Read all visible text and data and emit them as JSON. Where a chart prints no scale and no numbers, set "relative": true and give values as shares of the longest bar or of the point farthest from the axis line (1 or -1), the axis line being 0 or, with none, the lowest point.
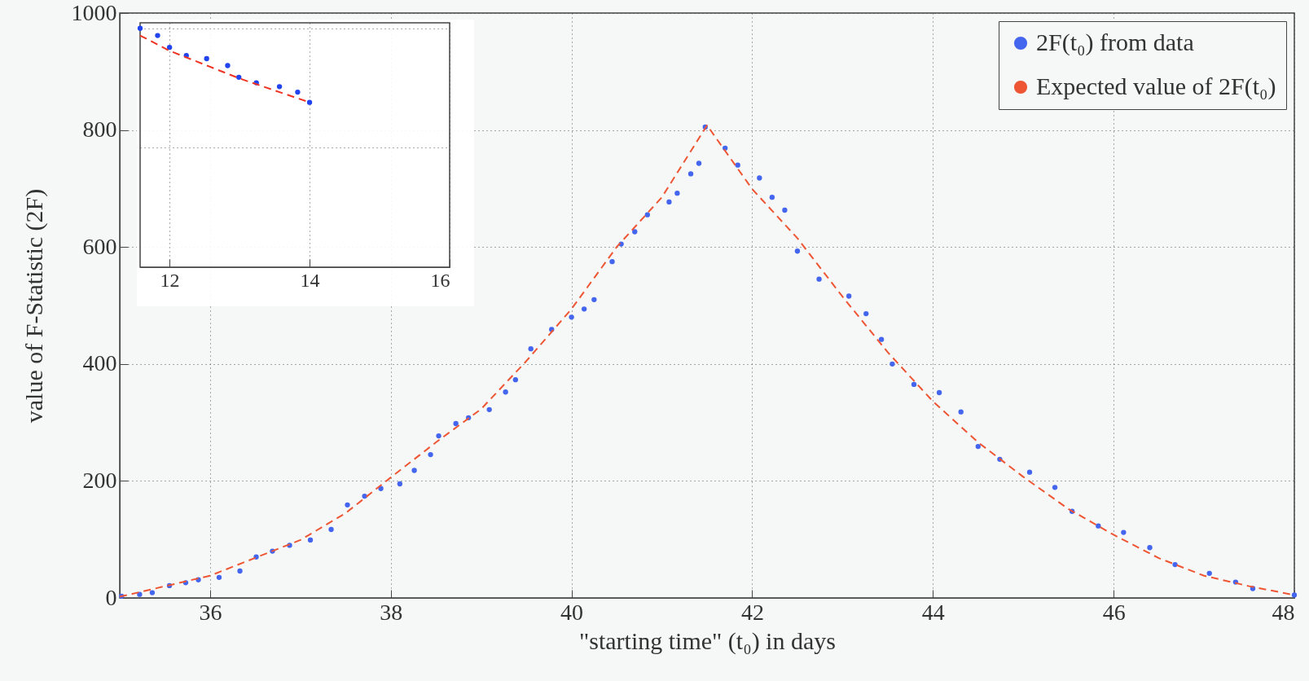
{
  "chart_data": [
    {
      "type": "scatter",
      "xlabel": "\"starting time\" (t₀) in days",
      "ylabel": "value of F-Statistic (2F)",
      "xlim": [
        35,
        48
      ],
      "xticks": [
        36,
        38,
        40,
        42,
        44,
        46,
        48
      ],
      "ylim": [
        0,
        1000
      ],
      "yticks": [
        0,
        200,
        400,
        600,
        800,
        1000
      ],
      "grid": true,
      "legend": "top right",
      "series": [
        {
          "name": "2F(t₀) from data",
          "type": "scatter",
          "marker": "circle",
          "color": "#4466ee",
          "x": [
            35.02,
            35.22,
            35.36,
            35.55,
            35.73,
            35.87,
            36.1,
            36.33,
            36.51,
            36.69,
            36.88,
            37.11,
            37.34,
            37.52,
            37.71,
            37.89,
            38.1,
            38.26,
            38.44,
            38.53,
            38.72,
            38.86,
            39.09,
            39.27,
            39.38,
            39.55,
            39.78,
            40.0,
            40.14,
            40.25,
            40.45,
            40.55,
            40.7,
            40.84,
            41.08,
            41.17,
            41.32,
            41.41,
            41.48,
            41.7,
            41.84,
            42.08,
            42.22,
            42.36,
            42.5,
            42.74,
            43.07,
            43.26,
            43.43,
            43.55,
            43.79,
            44.07,
            44.31,
            44.5,
            44.74,
            45.07,
            45.35,
            45.54,
            45.83,
            46.11,
            46.4,
            46.68,
            47.06,
            47.35,
            47.54,
            48.0
          ],
          "values": [
            3,
            6,
            9,
            21,
            26,
            31,
            35,
            46,
            70,
            80,
            90,
            99,
            117,
            159,
            174,
            187,
            195,
            218,
            245,
            277,
            298,
            308,
            322,
            352,
            373,
            426,
            459,
            480,
            494,
            510,
            575,
            605,
            626,
            655,
            677,
            692,
            725,
            743,
            805,
            769,
            740,
            718,
            685,
            663,
            593,
            545,
            516,
            486,
            442,
            400,
            365,
            351,
            318,
            259,
            237,
            215,
            189,
            148,
            123,
            112,
            86,
            57,
            42,
            27,
            16,
            5
          ]
        },
        {
          "name": "Expected value of 2F(t₀)",
          "type": "line",
          "line_style": "dashed",
          "color": "#ee5533",
          "x": [
            35,
            36,
            37,
            37.5,
            38,
            38.5,
            39,
            39.5,
            40,
            40.5,
            41,
            41.5,
            42,
            42.5,
            43,
            43.5,
            44,
            44.5,
            45,
            45.5,
            46,
            46.5,
            47,
            47.5,
            48
          ],
          "values": [
            2,
            38,
            99,
            145,
            206,
            266,
            323,
            405,
            494,
            600,
            685,
            808,
            699,
            615,
            515,
            420,
            336,
            266,
            207,
            152,
            108,
            68,
            38,
            20,
            5
          ]
        }
      ]
    },
    {
      "type": "scatter",
      "relative": true,
      "xlim": [
        11.58,
        16
      ],
      "xticks": [
        12,
        14,
        16
      ],
      "grid": true,
      "tick_labels": "x",
      "series": [
        {
          "type": "scatter",
          "marker": "circle",
          "color": "#2244ee",
          "x": [
            11.58,
            11.83,
            12.0,
            12.24,
            12.53,
            12.83,
            12.99,
            13.24,
            13.57,
            13.83,
            14.0
          ],
          "values": [
            1.0,
            0.97,
            0.92,
            0.886,
            0.873,
            0.844,
            0.795,
            0.772,
            0.756,
            0.733,
            0.69
          ]
        },
        {
          "type": "line",
          "line_style": "dashed",
          "color": "#ee3322",
          "x": [
            11.58,
            12.0,
            13.0,
            14.0
          ],
          "values": [
            0.97,
            0.906,
            0.79,
            0.69
          ]
        }
      ]
    }
  ]
}
